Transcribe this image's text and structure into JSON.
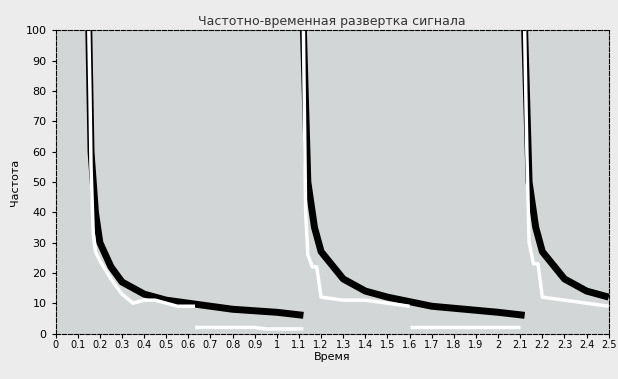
{
  "chart_data": {
    "type": "line",
    "title": "Частотно-временная развертка сигнала",
    "x_label": "Время",
    "y_label": "Частота",
    "xlim": [
      0,
      2.5
    ],
    "ylim": [
      0,
      100
    ],
    "xticks": [
      0,
      0.1,
      0.2,
      0.3,
      0.4,
      0.5,
      0.6,
      0.7,
      0.8,
      0.9,
      1,
      1.1,
      1.2,
      1.3,
      1.4,
      1.5,
      1.6,
      1.7,
      1.8,
      1.9,
      2,
      2.1,
      2.2,
      2.3,
      2.4,
      2.5
    ],
    "yticks": [
      0,
      10,
      20,
      30,
      40,
      50,
      60,
      70,
      80,
      90,
      100
    ],
    "grid": false,
    "series": [
      {
        "color": "#000000",
        "x": [
          0.15,
          0.16,
          0.18,
          0.2,
          0.25,
          0.3,
          0.4,
          0.5,
          0.6,
          0.8,
          1.0,
          1.12
        ],
        "values": [
          100,
          60,
          40,
          30,
          22,
          17,
          13,
          11,
          10,
          8,
          7,
          6
        ]
      },
      {
        "color": "#ffffff",
        "x": [
          0.15,
          0.155,
          0.16,
          0.17,
          0.18,
          0.2,
          0.25,
          0.3,
          0.35,
          0.4,
          0.45,
          0.5,
          0.55,
          0.63
        ],
        "values": [
          100,
          80,
          55,
          33,
          27,
          24,
          18,
          13,
          10,
          11,
          11,
          10,
          9,
          9
        ]
      },
      {
        "color": "#ffffff",
        "x": [
          0.63,
          0.9,
          0.95,
          1.12
        ],
        "values": [
          2,
          2,
          1.5,
          1.5
        ]
      },
      {
        "color": "#000000",
        "x": [
          1.12,
          1.14,
          1.17,
          1.2,
          1.3,
          1.4,
          1.5,
          1.7,
          2.0,
          2.12
        ],
        "values": [
          100,
          50,
          35,
          27,
          18,
          14,
          12,
          9,
          7,
          6
        ]
      },
      {
        "color": "#ffffff",
        "x": [
          1.12,
          1.125,
          1.13,
          1.14,
          1.16,
          1.18,
          1.2,
          1.3,
          1.4,
          1.5,
          1.6
        ],
        "values": [
          100,
          70,
          40,
          26,
          22,
          22,
          12,
          11,
          11,
          10,
          9
        ]
      },
      {
        "color": "#ffffff",
        "x": [
          1.6,
          2.1
        ],
        "values": [
          2,
          2
        ]
      },
      {
        "color": "#000000",
        "x": [
          2.12,
          2.14,
          2.17,
          2.2,
          2.3,
          2.4,
          2.5
        ],
        "values": [
          100,
          50,
          35,
          27,
          18,
          14,
          12
        ]
      },
      {
        "color": "#ffffff",
        "x": [
          2.12,
          2.13,
          2.14,
          2.16,
          2.18,
          2.2,
          2.3,
          2.4,
          2.5
        ],
        "values": [
          100,
          60,
          30,
          23,
          23,
          12,
          11,
          10,
          9
        ]
      }
    ]
  }
}
